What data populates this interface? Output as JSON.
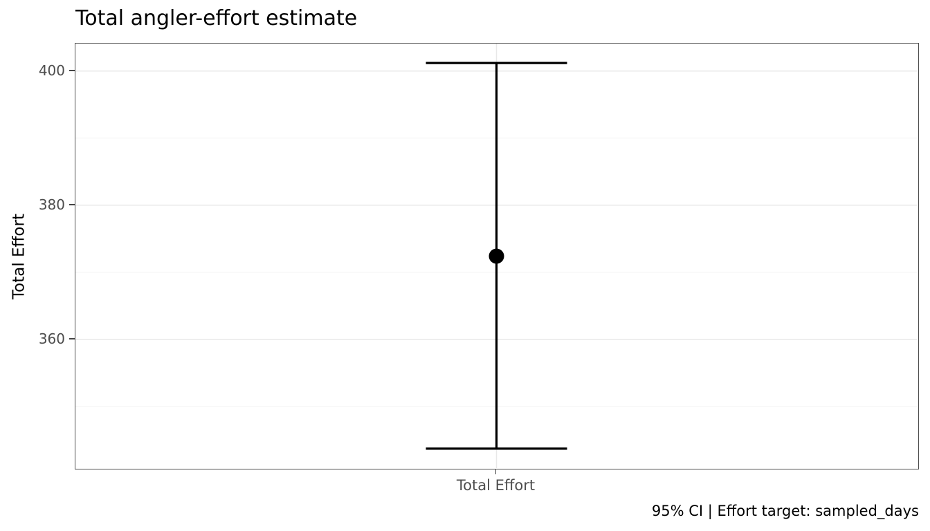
{
  "title": "Total angler-effort estimate",
  "caption": "95% CI | Effort target: sampled_days",
  "chart_data": {
    "type": "scatter",
    "subtype": "pointrange-with-errorbar",
    "title": "Total angler-effort estimate",
    "xlabel": "",
    "ylabel": "Total Effort",
    "categories": [
      "Total Effort"
    ],
    "series": [
      {
        "name": "Total Effort",
        "estimate": 372.4,
        "ci_lower": 343.7,
        "ci_upper": 401.2,
        "ci_level": "95%"
      }
    ],
    "y_ticks_major": [
      360,
      380,
      400
    ],
    "y_ticks_minor": [
      350,
      370,
      390
    ],
    "ylim": [
      340.8,
      404.1
    ],
    "grid": "horizontal major+minor, vertical major at category center",
    "legend_position": "none",
    "annotation": "95% CI | Effort target: sampled_days",
    "colors": {
      "point": "#000000",
      "errorbar": "#000000",
      "grid_major": "#e8e8e8",
      "grid_minor": "#f3f3f3",
      "axis_text": "#4d4d4d",
      "axis_title": "#000000",
      "panel_border": "#4d4d4d",
      "tick_mark": "#444444",
      "background": "#ffffff"
    }
  }
}
